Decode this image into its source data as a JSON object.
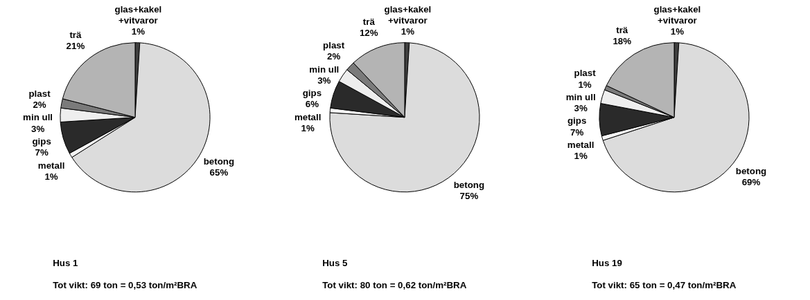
{
  "chart_data": [
    {
      "type": "pie",
      "title": "Hus 1",
      "subtitle": "Tot vikt: 69 ton = 0,53 ton/m²BRA",
      "categories": [
        "glas+kakel +vitvaror",
        "betong",
        "metall",
        "gips",
        "min ull",
        "plast",
        "trä"
      ],
      "values": [
        1,
        65,
        1,
        7,
        3,
        2,
        21
      ],
      "value_labels": [
        "1%",
        "65%",
        "1%",
        "7%",
        "3%",
        "2%",
        "21%"
      ],
      "colors": [
        "#404040",
        "#dcdcdc",
        "#f4f4f4",
        "#2a2a2a",
        "#eeeeee",
        "#7a7a7a",
        "#b4b4b4"
      ]
    },
    {
      "type": "pie",
      "title": "Hus 5",
      "subtitle": "Tot vikt: 80 ton = 0,62 ton/m²BRA",
      "categories": [
        "glas+kakel +vitvaror",
        "betong",
        "metall",
        "gips",
        "min ull",
        "plast",
        "trä"
      ],
      "values": [
        1,
        75,
        1,
        6,
        3,
        2,
        12
      ],
      "value_labels": [
        "1%",
        "75%",
        "1%",
        "6%",
        "3%",
        "2%",
        "12%"
      ],
      "colors": [
        "#404040",
        "#dcdcdc",
        "#f4f4f4",
        "#2a2a2a",
        "#eeeeee",
        "#7a7a7a",
        "#b4b4b4"
      ]
    },
    {
      "type": "pie",
      "title": "Hus 19",
      "subtitle": "Tot vikt: 65 ton = 0,47 ton/m²BRA",
      "categories": [
        "glas+kakel +vitvaror",
        "betong",
        "metall",
        "gips",
        "min ull",
        "plast",
        "trä"
      ],
      "values": [
        1,
        69,
        1,
        7,
        3,
        1,
        18
      ],
      "value_labels": [
        "1%",
        "69%",
        "1%",
        "7%",
        "3%",
        "1%",
        "18%"
      ],
      "colors": [
        "#404040",
        "#dcdcdc",
        "#f4f4f4",
        "#2a2a2a",
        "#eeeeee",
        "#7a7a7a",
        "#b4b4b4"
      ]
    }
  ]
}
